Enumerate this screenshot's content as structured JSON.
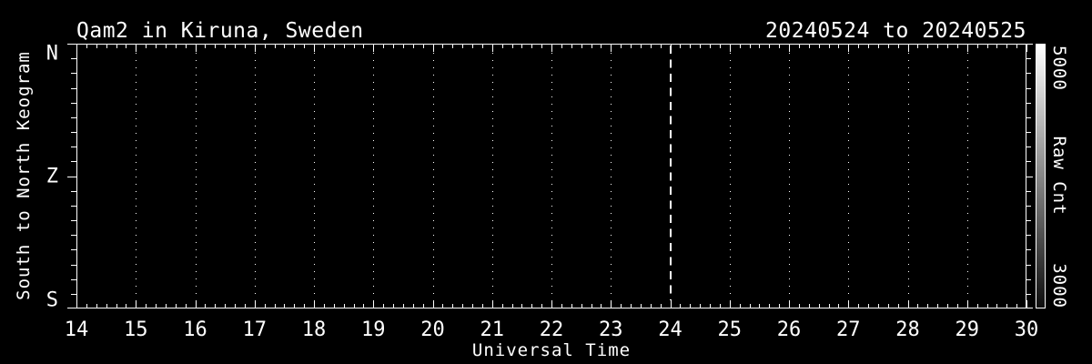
{
  "figure": {
    "bg_color": "#000000",
    "fg_color": "#ffffff"
  },
  "chart_data": {
    "type": "heatmap",
    "title": "Qam2 in Kiruna, Sweden",
    "subtitle": "20240524 to 20240525",
    "xlabel": "Universal Time",
    "ylabel": "South to North Keogram",
    "x_ticks": [
      "14",
      "15",
      "16",
      "17",
      "18",
      "19",
      "20",
      "21",
      "22",
      "23",
      "24",
      "25",
      "26",
      "27",
      "28",
      "29",
      "30"
    ],
    "xlim": [
      14,
      30
    ],
    "x_minor_per_interval": 6,
    "y_ticks": [
      "N",
      "Z",
      "S"
    ],
    "y_minor_per_interval": 9,
    "grid": {
      "orientation": "vertical",
      "style": "dotted",
      "at_hours": [
        15,
        16,
        17,
        18,
        19,
        20,
        21,
        22,
        23,
        25,
        26,
        27,
        28,
        29
      ]
    },
    "marker_line": {
      "x": 24,
      "style": "dashed"
    },
    "colorbar": {
      "label": "Raw Cnt",
      "max_label": "5000",
      "min_label": "3000",
      "top_color": "#ffffff",
      "bottom_color": "#0d0d0d"
    },
    "data_values_visible": false,
    "values": []
  }
}
